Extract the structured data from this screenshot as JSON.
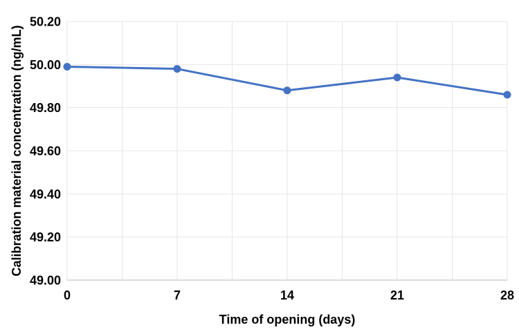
{
  "chart_data": {
    "type": "line",
    "title": "",
    "xlabel": "Time of opening (days)",
    "ylabel": "Calibration material concentration (ng/mL)",
    "x": [
      0,
      7,
      14,
      21,
      28
    ],
    "series": [
      {
        "name": "Calibration material concentration",
        "values": [
          49.99,
          49.98,
          49.88,
          49.94,
          49.86
        ]
      }
    ],
    "xlim": [
      0,
      28
    ],
    "ylim": [
      49.0,
      50.2
    ],
    "x_tick_values": [
      0,
      7,
      14,
      21,
      28
    ],
    "x_tick_labels": [
      "0",
      "7",
      "14",
      "21",
      "28"
    ],
    "x_minor_gridline_step": 3.5,
    "y_tick_values": [
      49.0,
      49.2,
      49.4,
      49.6,
      49.8,
      50.0,
      50.2
    ],
    "y_tick_labels": [
      "49.00",
      "49.20",
      "49.40",
      "49.60",
      "49.80",
      "50.00",
      "50.20"
    ],
    "grid": true,
    "legend": "none",
    "colors": {
      "line": "#4472C4",
      "marker": "#4472C4",
      "gridline": "#E6E6E6",
      "axis_line": "#D0D0D0",
      "text": "#000000",
      "background": "#FFFFFF"
    }
  }
}
